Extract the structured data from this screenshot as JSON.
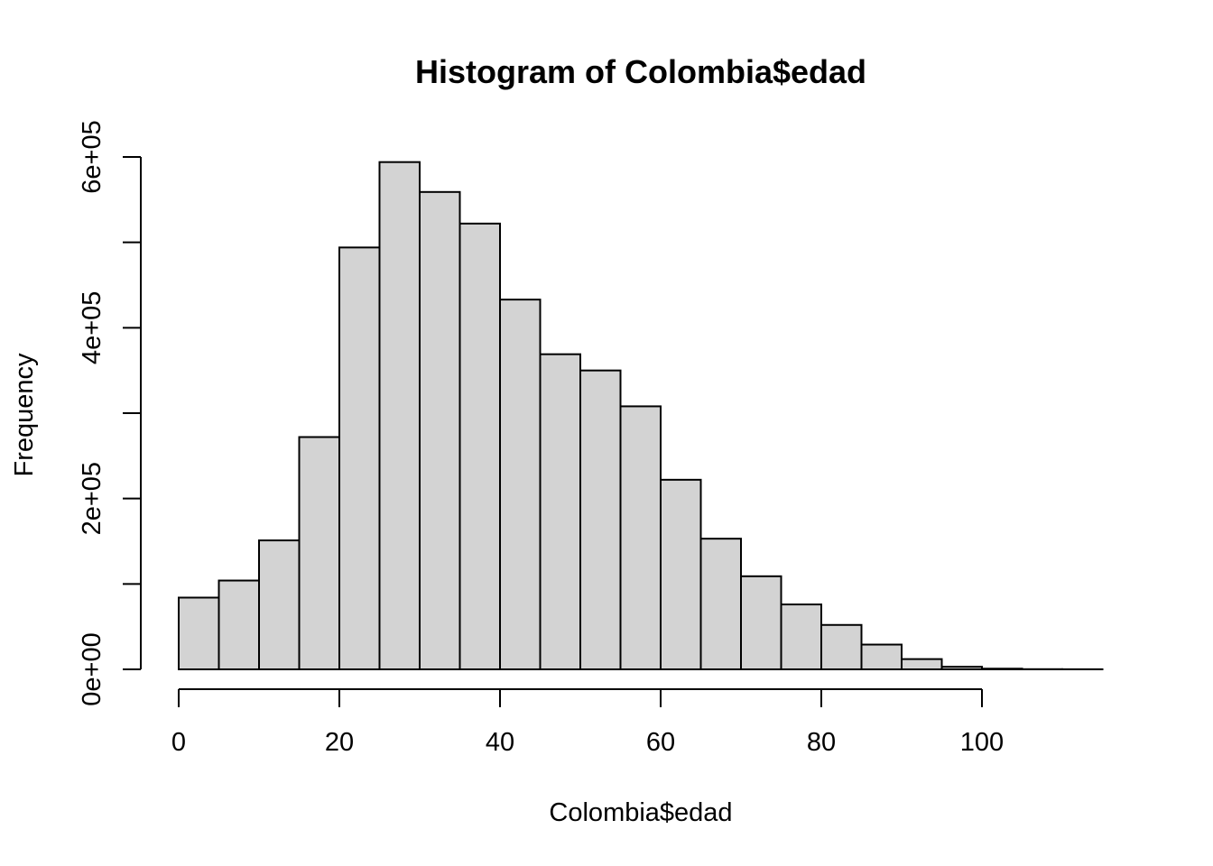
{
  "chart_data": {
    "type": "bar",
    "title": "Histogram of Colombia$edad",
    "xlabel": "Colombia$edad",
    "ylabel": "Frequency",
    "xlim": [
      0,
      115
    ],
    "ylim": [
      0,
      600000
    ],
    "x_ticks": [
      0,
      20,
      40,
      60,
      80,
      100
    ],
    "x_tick_labels": [
      "0",
      "20",
      "40",
      "60",
      "80",
      "100"
    ],
    "y_ticks": [
      0,
      100000,
      200000,
      300000,
      400000,
      500000,
      600000
    ],
    "y_tick_labels": [
      "0e+00",
      "",
      "2e+05",
      "",
      "4e+05",
      "",
      "6e+05"
    ],
    "bins": [
      {
        "start": 0,
        "end": 5,
        "value": 84000
      },
      {
        "start": 5,
        "end": 10,
        "value": 104000
      },
      {
        "start": 10,
        "end": 15,
        "value": 151000
      },
      {
        "start": 15,
        "end": 20,
        "value": 272000
      },
      {
        "start": 20,
        "end": 25,
        "value": 494000
      },
      {
        "start": 25,
        "end": 30,
        "value": 594000
      },
      {
        "start": 30,
        "end": 35,
        "value": 559000
      },
      {
        "start": 35,
        "end": 40,
        "value": 522000
      },
      {
        "start": 40,
        "end": 45,
        "value": 433000
      },
      {
        "start": 45,
        "end": 50,
        "value": 369000
      },
      {
        "start": 50,
        "end": 55,
        "value": 350000
      },
      {
        "start": 55,
        "end": 60,
        "value": 308000
      },
      {
        "start": 60,
        "end": 65,
        "value": 222000
      },
      {
        "start": 65,
        "end": 70,
        "value": 153000
      },
      {
        "start": 70,
        "end": 75,
        "value": 109000
      },
      {
        "start": 75,
        "end": 80,
        "value": 76000
      },
      {
        "start": 80,
        "end": 85,
        "value": 52000
      },
      {
        "start": 85,
        "end": 90,
        "value": 29000
      },
      {
        "start": 90,
        "end": 95,
        "value": 12000
      },
      {
        "start": 95,
        "end": 100,
        "value": 3000
      },
      {
        "start": 100,
        "end": 105,
        "value": 800
      },
      {
        "start": 105,
        "end": 110,
        "value": 200
      },
      {
        "start": 110,
        "end": 115,
        "value": 100
      }
    ],
    "grid": false,
    "legend": "none",
    "colors": {
      "bar_fill": "#d3d3d3",
      "bar_stroke": "#000000",
      "axis": "#000000",
      "background": "#ffffff"
    }
  }
}
